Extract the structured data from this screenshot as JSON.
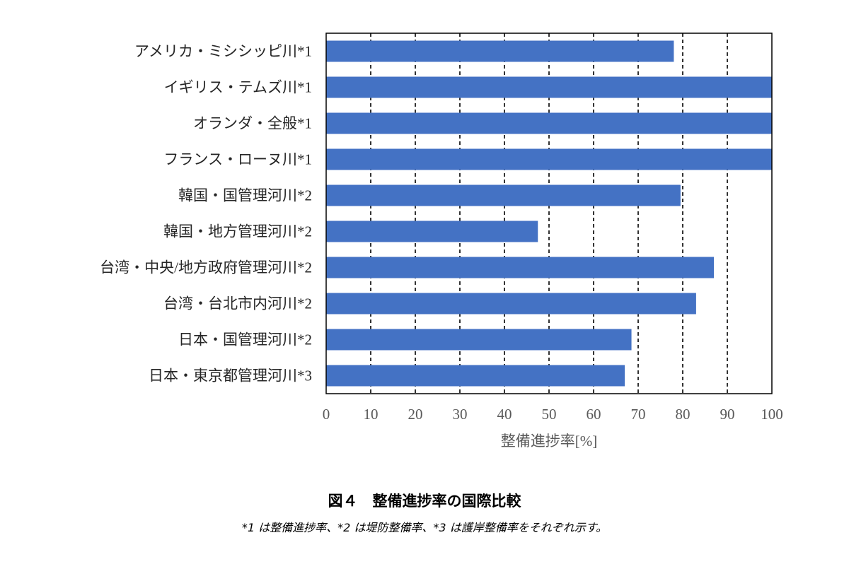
{
  "chart_data": {
    "type": "bar",
    "orientation": "horizontal",
    "categories": [
      "アメリカ・ミシシッピ川*1",
      "イギリス・テムズ川*1",
      "オランダ・全般*1",
      "フランス・ローヌ川*1",
      "韓国・国管理河川*2",
      "韓国・地方管理河川*2",
      "台湾・中央/地方政府管理河川*2",
      "台湾・台北市内河川*2",
      "日本・国管理河川*2",
      "日本・東京都管理河川*3"
    ],
    "values": [
      78,
      100,
      100,
      100,
      79.5,
      47.5,
      87,
      83,
      68.5,
      67
    ],
    "xlabel": "整備進捗率[%]",
    "xlim": [
      0,
      100
    ],
    "xticks": [
      0,
      10,
      20,
      30,
      40,
      50,
      60,
      70,
      80,
      90,
      100
    ],
    "grid": "vertical dashed",
    "bar_color": "#4472C4"
  },
  "caption": {
    "title": "図４　整備進捗率の国際比較",
    "note": "*1 は整備進捗率、*2 は堤防整備率、*3 は護岸整備率をそれぞれ示す。"
  }
}
